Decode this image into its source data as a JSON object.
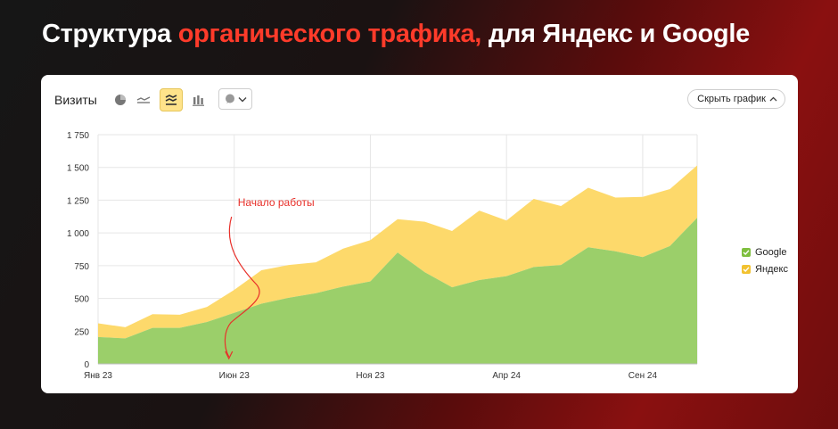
{
  "headline": {
    "part1": "Структура",
    "accent": "органического трафика,",
    "part2": "для Яндекс и Google"
  },
  "toolbar": {
    "title": "Визиты",
    "hide_chart_label": "Скрыть график",
    "icons": [
      "pie-chart-icon",
      "line-chart-icon",
      "stacked-area-icon",
      "bar-chart-icon",
      "comment-icon",
      "chevron-down-icon"
    ]
  },
  "colors": {
    "google": "#9bcf6a",
    "yandex": "#fdd96b",
    "accent": "#ff3b2a",
    "annotation": "#e8302a"
  },
  "chart_data": {
    "type": "area",
    "stacked": true,
    "title": "",
    "xlabel": "",
    "ylabel": "",
    "ylim": [
      0,
      1750
    ],
    "y_ticks": [
      "0",
      "250",
      "500",
      "750",
      "1 000",
      "1 250",
      "1 500",
      "1 750"
    ],
    "y_tick_values": [
      0,
      250,
      500,
      750,
      1000,
      1250,
      1500,
      1750
    ],
    "x_tick_labels": [
      "Янв 23",
      "Июн 23",
      "Ноя 23",
      "Апр 24",
      "Сен 24"
    ],
    "x_tick_index": [
      0,
      5,
      10,
      15,
      20
    ],
    "grid": true,
    "legend_position": "right",
    "series": [
      {
        "name": "Google",
        "values": [
          205,
          195,
          275,
          275,
          320,
          390,
          460,
          505,
          540,
          590,
          630,
          850,
          700,
          585,
          640,
          670,
          740,
          755,
          890,
          860,
          815,
          900,
          1115
        ]
      },
      {
        "name": "Яндекс",
        "values": [
          105,
          85,
          105,
          100,
          115,
          175,
          255,
          250,
          235,
          290,
          315,
          255,
          385,
          430,
          530,
          425,
          520,
          450,
          455,
          410,
          460,
          435,
          400
        ]
      }
    ],
    "annotations": [
      {
        "text": "Начало работы",
        "x_index": 5
      }
    ]
  }
}
